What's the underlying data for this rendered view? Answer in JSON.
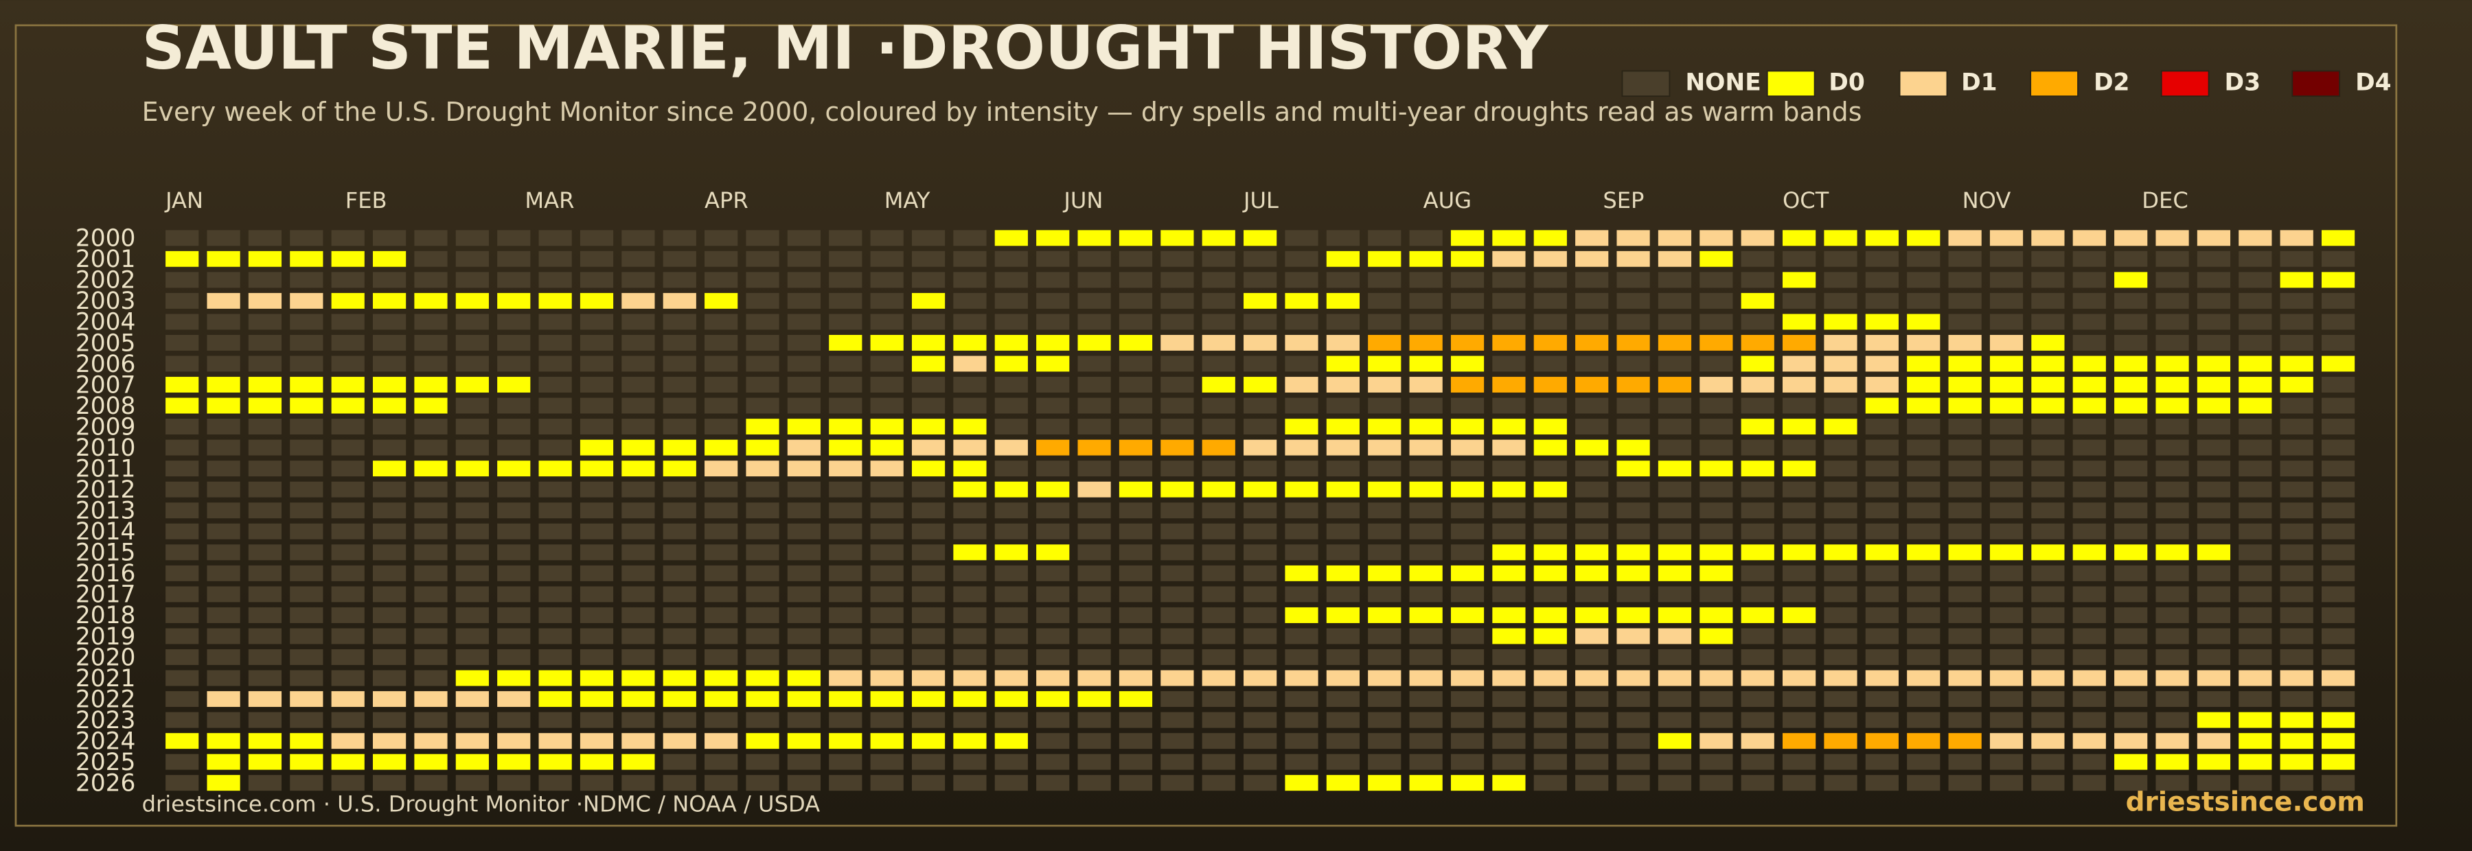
{
  "chart_data": {
    "type": "heatmap",
    "title": "SAULT STE MARIE, MI ·DROUGHT HISTORY",
    "subtitle": "Every week of the U.S. Drought Monitor since 2000, coloured by intensity — dry spells and multi-year droughts read as warm bands",
    "source": "driestsince.com  · U.S. Drought Monitor ·NDMC / NOAA / USDA",
    "brand": "driestsince.com",
    "legend": [
      "NONE",
      "D0",
      "D1",
      "D2",
      "D3",
      "D4"
    ],
    "colors": [
      "#4a3f2b",
      "#ffff00",
      "#fcd38f",
      "#ffaa00",
      "#e60000",
      "#730000"
    ],
    "months": [
      "JAN",
      "FEB",
      "MAR",
      "APR",
      "MAY",
      "JUN",
      "JUL",
      "AUG",
      "SEP",
      "OCT",
      "NOV",
      "DEC"
    ],
    "years": [
      2000,
      2001,
      2002,
      2003,
      2004,
      2005,
      2006,
      2007,
      2008,
      2009,
      2010,
      2011,
      2012,
      2013,
      2014,
      2015,
      2016,
      2017,
      2018,
      2019,
      2020,
      2021,
      2022,
      2023,
      2024,
      2025,
      2026
    ],
    "rows": [
      [
        0,
        0,
        0,
        0,
        0,
        0,
        0,
        0,
        0,
        0,
        0,
        0,
        0,
        0,
        0,
        0,
        0,
        0,
        0,
        0,
        1,
        1,
        1,
        1,
        1,
        1,
        1,
        0,
        0,
        0,
        0,
        1,
        1,
        1,
        2,
        2,
        2,
        2,
        2,
        1,
        1,
        1,
        1,
        2,
        2,
        2,
        2,
        2,
        2,
        2,
        2,
        2,
        1
      ],
      [
        1,
        1,
        1,
        1,
        1,
        1,
        0,
        0,
        0,
        0,
        0,
        0,
        0,
        0,
        0,
        0,
        0,
        0,
        0,
        0,
        0,
        0,
        0,
        0,
        0,
        0,
        0,
        0,
        1,
        1,
        1,
        1,
        2,
        2,
        2,
        2,
        2,
        1,
        0,
        0,
        0,
        0,
        0,
        0,
        0,
        0,
        0,
        0,
        0,
        0,
        0,
        0,
        0
      ],
      [
        0,
        0,
        0,
        0,
        0,
        0,
        0,
        0,
        0,
        0,
        0,
        0,
        0,
        0,
        0,
        0,
        0,
        0,
        0,
        0,
        0,
        0,
        0,
        0,
        0,
        0,
        0,
        0,
        0,
        0,
        0,
        0,
        0,
        0,
        0,
        0,
        0,
        0,
        0,
        1,
        0,
        0,
        0,
        0,
        0,
        0,
        0,
        1,
        0,
        0,
        0,
        1,
        1
      ],
      [
        0,
        2,
        2,
        2,
        1,
        1,
        1,
        1,
        1,
        1,
        1,
        2,
        2,
        1,
        0,
        0,
        0,
        0,
        1,
        0,
        0,
        0,
        0,
        0,
        0,
        0,
        1,
        1,
        1,
        0,
        0,
        0,
        0,
        0,
        0,
        0,
        0,
        0,
        1,
        0,
        0,
        0,
        0,
        0,
        0,
        0,
        0,
        0,
        0,
        0,
        0,
        0,
        0
      ],
      [
        0,
        0,
        0,
        0,
        0,
        0,
        0,
        0,
        0,
        0,
        0,
        0,
        0,
        0,
        0,
        0,
        0,
        0,
        0,
        0,
        0,
        0,
        0,
        0,
        0,
        0,
        0,
        0,
        0,
        0,
        0,
        0,
        0,
        0,
        0,
        0,
        0,
        0,
        0,
        1,
        1,
        1,
        1,
        0,
        0,
        0,
        0,
        0,
        0,
        0,
        0,
        0,
        0
      ],
      [
        0,
        0,
        0,
        0,
        0,
        0,
        0,
        0,
        0,
        0,
        0,
        0,
        0,
        0,
        0,
        0,
        1,
        1,
        1,
        1,
        1,
        1,
        1,
        1,
        2,
        2,
        2,
        2,
        2,
        3,
        3,
        3,
        3,
        3,
        3,
        3,
        3,
        3,
        3,
        3,
        2,
        2,
        2,
        2,
        2,
        1,
        0,
        0,
        0,
        0,
        0,
        0,
        0
      ],
      [
        0,
        0,
        0,
        0,
        0,
        0,
        0,
        0,
        0,
        0,
        0,
        0,
        0,
        0,
        0,
        0,
        0,
        0,
        1,
        2,
        1,
        1,
        0,
        0,
        0,
        0,
        0,
        0,
        1,
        1,
        1,
        1,
        0,
        0,
        0,
        0,
        0,
        0,
        1,
        2,
        2,
        2,
        1,
        1,
        1,
        1,
        1,
        1,
        1,
        1,
        1,
        1,
        1
      ],
      [
        1,
        1,
        1,
        1,
        1,
        1,
        1,
        1,
        1,
        0,
        0,
        0,
        0,
        0,
        0,
        0,
        0,
        0,
        0,
        0,
        0,
        0,
        0,
        0,
        0,
        1,
        1,
        2,
        2,
        2,
        2,
        3,
        3,
        3,
        3,
        3,
        3,
        2,
        2,
        2,
        2,
        2,
        1,
        1,
        1,
        1,
        1,
        1,
        1,
        1,
        1,
        1,
        0
      ],
      [
        1,
        1,
        1,
        1,
        1,
        1,
        1,
        0,
        0,
        0,
        0,
        0,
        0,
        0,
        0,
        0,
        0,
        0,
        0,
        0,
        0,
        0,
        0,
        0,
        0,
        0,
        0,
        0,
        0,
        0,
        0,
        0,
        0,
        0,
        0,
        0,
        0,
        0,
        0,
        0,
        0,
        1,
        1,
        1,
        1,
        1,
        1,
        1,
        1,
        1,
        1,
        0,
        0
      ],
      [
        0,
        0,
        0,
        0,
        0,
        0,
        0,
        0,
        0,
        0,
        0,
        0,
        0,
        0,
        1,
        1,
        1,
        1,
        1,
        1,
        0,
        0,
        0,
        0,
        0,
        0,
        0,
        1,
        1,
        1,
        1,
        1,
        1,
        1,
        0,
        0,
        0,
        0,
        1,
        1,
        1,
        0,
        0,
        0,
        0,
        0,
        0,
        0,
        0,
        0,
        0,
        0,
        0
      ],
      [
        0,
        0,
        0,
        0,
        0,
        0,
        0,
        0,
        0,
        0,
        1,
        1,
        1,
        1,
        1,
        2,
        1,
        1,
        2,
        2,
        2,
        3,
        3,
        3,
        3,
        3,
        2,
        2,
        2,
        2,
        2,
        2,
        2,
        1,
        1,
        1,
        0,
        0,
        0,
        0,
        0,
        0,
        0,
        0,
        0,
        0,
        0,
        0,
        0,
        0,
        0,
        0,
        0
      ],
      [
        0,
        0,
        0,
        0,
        0,
        1,
        1,
        1,
        1,
        1,
        1,
        1,
        1,
        2,
        2,
        2,
        2,
        2,
        1,
        1,
        0,
        0,
        0,
        0,
        0,
        0,
        0,
        0,
        0,
        0,
        0,
        0,
        0,
        0,
        0,
        1,
        1,
        1,
        1,
        1,
        0,
        0,
        0,
        0,
        0,
        0,
        0,
        0,
        0,
        0,
        0,
        0,
        0
      ],
      [
        0,
        0,
        0,
        0,
        0,
        0,
        0,
        0,
        0,
        0,
        0,
        0,
        0,
        0,
        0,
        0,
        0,
        0,
        0,
        1,
        1,
        1,
        2,
        1,
        1,
        1,
        1,
        1,
        1,
        1,
        1,
        1,
        1,
        1,
        0,
        0,
        0,
        0,
        0,
        0,
        0,
        0,
        0,
        0,
        0,
        0,
        0,
        0,
        0,
        0,
        0,
        0,
        0
      ],
      [
        0,
        0,
        0,
        0,
        0,
        0,
        0,
        0,
        0,
        0,
        0,
        0,
        0,
        0,
        0,
        0,
        0,
        0,
        0,
        0,
        0,
        0,
        0,
        0,
        0,
        0,
        0,
        0,
        0,
        0,
        0,
        0,
        0,
        0,
        0,
        0,
        0,
        0,
        0,
        0,
        0,
        0,
        0,
        0,
        0,
        0,
        0,
        0,
        0,
        0,
        0,
        0,
        0
      ],
      [
        0,
        0,
        0,
        0,
        0,
        0,
        0,
        0,
        0,
        0,
        0,
        0,
        0,
        0,
        0,
        0,
        0,
        0,
        0,
        0,
        0,
        0,
        0,
        0,
        0,
        0,
        0,
        0,
        0,
        0,
        0,
        0,
        0,
        0,
        0,
        0,
        0,
        0,
        0,
        0,
        0,
        0,
        0,
        0,
        0,
        0,
        0,
        0,
        0,
        0,
        0,
        0,
        0
      ],
      [
        0,
        0,
        0,
        0,
        0,
        0,
        0,
        0,
        0,
        0,
        0,
        0,
        0,
        0,
        0,
        0,
        0,
        0,
        0,
        1,
        1,
        1,
        0,
        0,
        0,
        0,
        0,
        0,
        0,
        0,
        0,
        0,
        1,
        1,
        1,
        1,
        1,
        1,
        1,
        1,
        1,
        1,
        1,
        1,
        1,
        1,
        1,
        1,
        1,
        1,
        0,
        0,
        0
      ],
      [
        0,
        0,
        0,
        0,
        0,
        0,
        0,
        0,
        0,
        0,
        0,
        0,
        0,
        0,
        0,
        0,
        0,
        0,
        0,
        0,
        0,
        0,
        0,
        0,
        0,
        0,
        0,
        1,
        1,
        1,
        1,
        1,
        1,
        1,
        1,
        1,
        1,
        1,
        0,
        0,
        0,
        0,
        0,
        0,
        0,
        0,
        0,
        0,
        0,
        0,
        0,
        0,
        0
      ],
      [
        0,
        0,
        0,
        0,
        0,
        0,
        0,
        0,
        0,
        0,
        0,
        0,
        0,
        0,
        0,
        0,
        0,
        0,
        0,
        0,
        0,
        0,
        0,
        0,
        0,
        0,
        0,
        0,
        0,
        0,
        0,
        0,
        0,
        0,
        0,
        0,
        0,
        0,
        0,
        0,
        0,
        0,
        0,
        0,
        0,
        0,
        0,
        0,
        0,
        0,
        0,
        0,
        0
      ],
      [
        0,
        0,
        0,
        0,
        0,
        0,
        0,
        0,
        0,
        0,
        0,
        0,
        0,
        0,
        0,
        0,
        0,
        0,
        0,
        0,
        0,
        0,
        0,
        0,
        0,
        0,
        0,
        1,
        1,
        1,
        1,
        1,
        1,
        1,
        1,
        1,
        1,
        1,
        1,
        1,
        0,
        0,
        0,
        0,
        0,
        0,
        0,
        0,
        0,
        0,
        0,
        0,
        0
      ],
      [
        0,
        0,
        0,
        0,
        0,
        0,
        0,
        0,
        0,
        0,
        0,
        0,
        0,
        0,
        0,
        0,
        0,
        0,
        0,
        0,
        0,
        0,
        0,
        0,
        0,
        0,
        0,
        0,
        0,
        0,
        0,
        0,
        1,
        1,
        2,
        2,
        2,
        1,
        0,
        0,
        0,
        0,
        0,
        0,
        0,
        0,
        0,
        0,
        0,
        0,
        0,
        0,
        0
      ],
      [
        0,
        0,
        0,
        0,
        0,
        0,
        0,
        0,
        0,
        0,
        0,
        0,
        0,
        0,
        0,
        0,
        0,
        0,
        0,
        0,
        0,
        0,
        0,
        0,
        0,
        0,
        0,
        0,
        0,
        0,
        0,
        0,
        0,
        0,
        0,
        0,
        0,
        0,
        0,
        0,
        0,
        0,
        0,
        0,
        0,
        0,
        0,
        0,
        0,
        0,
        0,
        0,
        0
      ],
      [
        0,
        0,
        0,
        0,
        0,
        0,
        0,
        1,
        1,
        1,
        1,
        1,
        1,
        1,
        1,
        1,
        2,
        2,
        2,
        2,
        2,
        2,
        2,
        2,
        2,
        2,
        2,
        2,
        2,
        2,
        2,
        2,
        2,
        2,
        2,
        2,
        2,
        2,
        2,
        2,
        2,
        2,
        2,
        2,
        2,
        2,
        2,
        2,
        2,
        2,
        2,
        2,
        2
      ],
      [
        0,
        2,
        2,
        2,
        2,
        2,
        2,
        2,
        2,
        1,
        1,
        1,
        1,
        1,
        1,
        1,
        1,
        1,
        1,
        1,
        1,
        1,
        1,
        1,
        0,
        0,
        0,
        0,
        0,
        0,
        0,
        0,
        0,
        0,
        0,
        0,
        0,
        0,
        0,
        0,
        0,
        0,
        0,
        0,
        0,
        0,
        0,
        0,
        0,
        0,
        0,
        0,
        0
      ],
      [
        0,
        0,
        0,
        0,
        0,
        0,
        0,
        0,
        0,
        0,
        0,
        0,
        0,
        0,
        0,
        0,
        0,
        0,
        0,
        0,
        0,
        0,
        0,
        0,
        0,
        0,
        0,
        0,
        0,
        0,
        0,
        0,
        0,
        0,
        0,
        0,
        0,
        0,
        0,
        0,
        0,
        0,
        0,
        0,
        0,
        0,
        0,
        0,
        0,
        1,
        1,
        1,
        1
      ],
      [
        1,
        1,
        1,
        1,
        2,
        2,
        2,
        2,
        2,
        2,
        2,
        2,
        2,
        2,
        1,
        1,
        1,
        1,
        1,
        1,
        1,
        0,
        0,
        0,
        0,
        0,
        0,
        0,
        0,
        0,
        0,
        0,
        0,
        0,
        0,
        0,
        1,
        2,
        2,
        3,
        3,
        3,
        3,
        3,
        2,
        2,
        2,
        2,
        2,
        2,
        1,
        1,
        1
      ],
      [
        0,
        1,
        1,
        1,
        1,
        1,
        1,
        1,
        1,
        1,
        1,
        1,
        0,
        0,
        0,
        0,
        0,
        0,
        0,
        0,
        0,
        0,
        0,
        0,
        0,
        0,
        0,
        0,
        0,
        0,
        0,
        0,
        0,
        0,
        0,
        0,
        0,
        0,
        0,
        0,
        0,
        0,
        0,
        0,
        0,
        0,
        0,
        1,
        1,
        1,
        1,
        1,
        1
      ],
      [
        0,
        1,
        0,
        0,
        0,
        0,
        0,
        0,
        0,
        0,
        0,
        0,
        0,
        0,
        0,
        0,
        0,
        0,
        0,
        0,
        0,
        0,
        0,
        0,
        0,
        0,
        0,
        1,
        1,
        1,
        1,
        1,
        1,
        0,
        0,
        0,
        0,
        0,
        0,
        0,
        0,
        0,
        0,
        0,
        0,
        0,
        0,
        0,
        0,
        0,
        0,
        0,
        0
      ]
    ]
  }
}
